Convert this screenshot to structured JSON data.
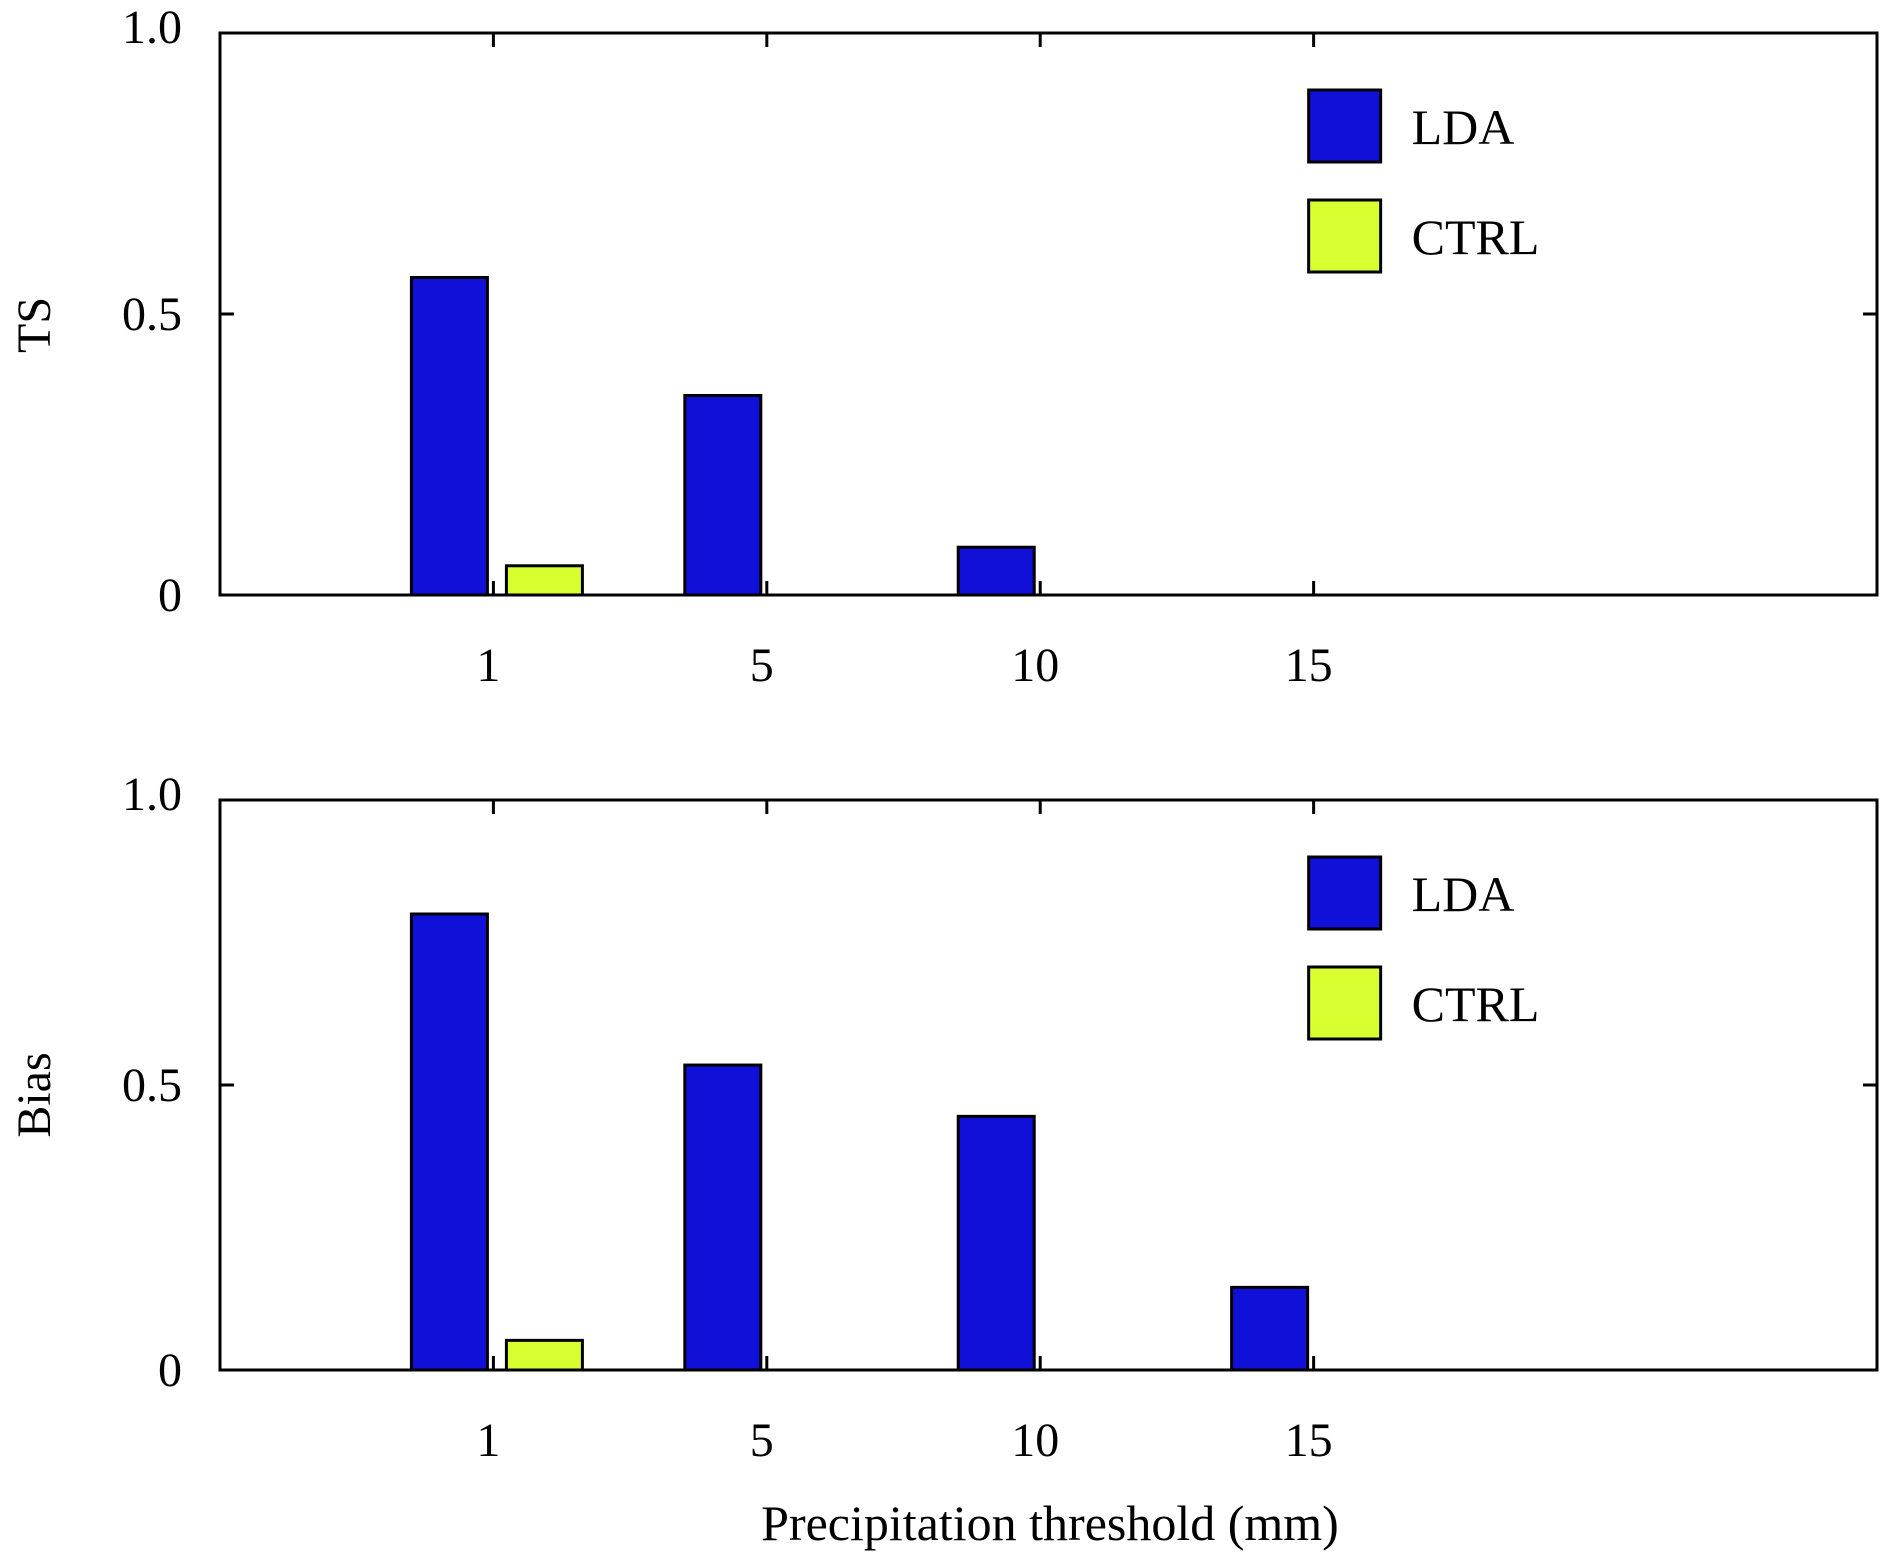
{
  "colors": {
    "lda": "#1010d8",
    "ctrl": "#d8ff30",
    "axis": "#000000",
    "bar_edge": "#000000"
  },
  "xlabel": "Precipitation threshold (mm)",
  "chart_data": [
    {
      "type": "bar",
      "ylabel": "TS",
      "categories": [
        "1",
        "5",
        "10",
        "15"
      ],
      "ylim": [
        0,
        1.0
      ],
      "yticks": [
        "0",
        "0.5",
        "1.0"
      ],
      "legend_position": "top-right",
      "series": [
        {
          "name": "LDA",
          "values": [
            0.565,
            0.355,
            0.085,
            0.0
          ]
        },
        {
          "name": "CTRL",
          "values": [
            0.052,
            0.0,
            0.0,
            0.0
          ]
        }
      ]
    },
    {
      "type": "bar",
      "ylabel": "Bias",
      "categories": [
        "1",
        "5",
        "10",
        "15"
      ],
      "ylim": [
        0,
        1.0
      ],
      "yticks": [
        "0",
        "0.5",
        "1.0"
      ],
      "legend_position": "top-right",
      "series": [
        {
          "name": "LDA",
          "values": [
            0.8,
            0.535,
            0.445,
            0.145
          ]
        },
        {
          "name": "CTRL",
          "values": [
            0.052,
            0.0,
            0.0,
            0.0
          ]
        }
      ]
    }
  ]
}
